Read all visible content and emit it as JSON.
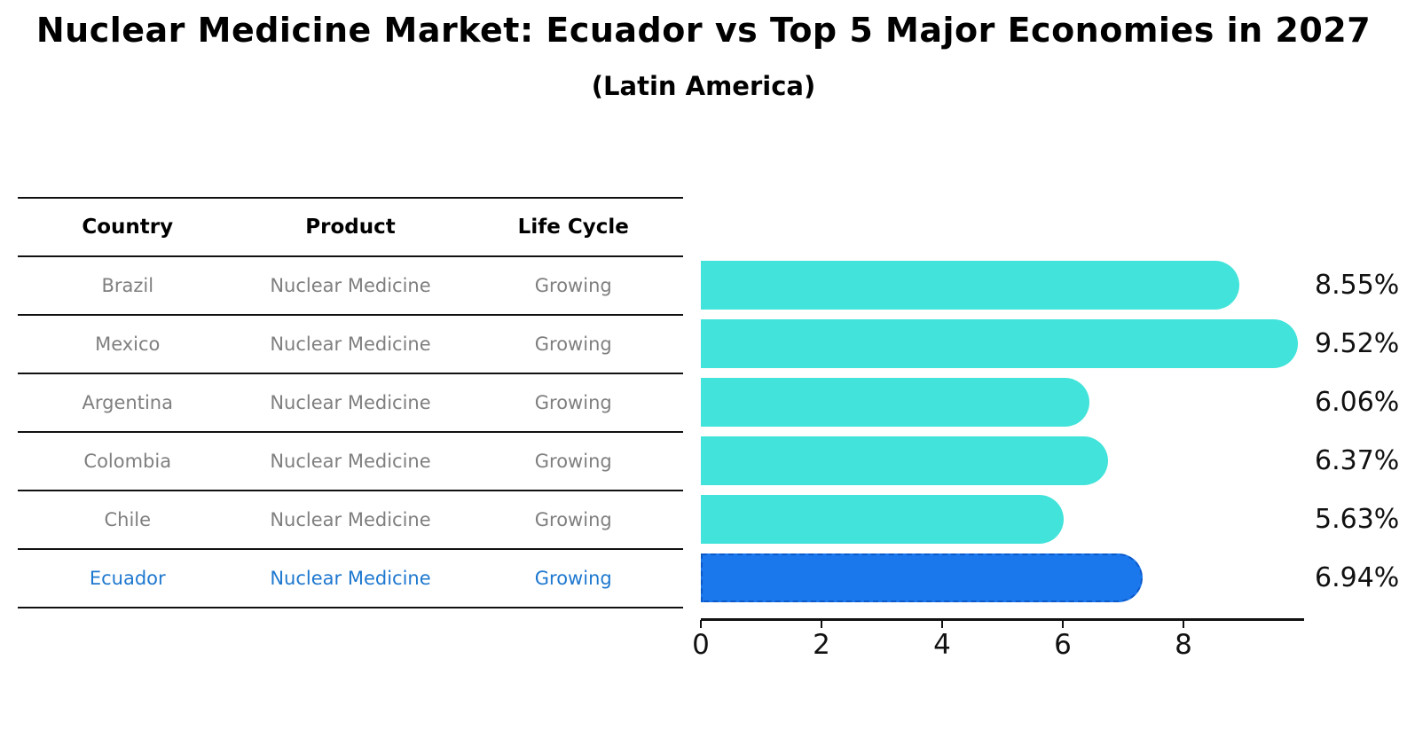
{
  "header": {
    "title": "Nuclear Medicine Market: Ecuador vs Top 5 Major Economies in 2027",
    "subtitle": "(Latin America)"
  },
  "table": {
    "columns": [
      "Country",
      "Product",
      "Life Cycle"
    ],
    "rows": [
      {
        "country": "Brazil",
        "product": "Nuclear Medicine",
        "life_cycle": "Growing",
        "highlight": false
      },
      {
        "country": "Mexico",
        "product": "Nuclear Medicine",
        "life_cycle": "Growing",
        "highlight": false
      },
      {
        "country": "Argentina",
        "product": "Nuclear Medicine",
        "life_cycle": "Growing",
        "highlight": false
      },
      {
        "country": "Colombia",
        "product": "Nuclear Medicine",
        "life_cycle": "Growing",
        "highlight": false
      },
      {
        "country": "Chile",
        "product": "Nuclear Medicine",
        "life_cycle": "Growing",
        "highlight": false
      },
      {
        "country": "Ecuador",
        "product": "Nuclear Medicine",
        "life_cycle": "Growing",
        "highlight": true
      }
    ]
  },
  "chart_data": {
    "type": "bar",
    "orientation": "horizontal",
    "title": "Nuclear Medicine Market: Ecuador vs Top 5 Major Economies in 2027",
    "subtitle": "(Latin America)",
    "categories": [
      "Brazil",
      "Mexico",
      "Argentina",
      "Colombia",
      "Chile",
      "Ecuador"
    ],
    "values": [
      8.55,
      9.52,
      6.06,
      6.37,
      5.63,
      6.94
    ],
    "value_labels": [
      "8.55%",
      "9.52%",
      "6.06%",
      "6.37%",
      "5.63%",
      "6.94%"
    ],
    "unit": "%",
    "xlim": [
      0,
      10
    ],
    "x_ticks": [
      "0",
      "2",
      "4",
      "6",
      "8"
    ],
    "x_tick_values": [
      0,
      2,
      4,
      6,
      8
    ],
    "grid": false,
    "legend_position": "none",
    "highlight_index": 5,
    "colors": {
      "bar": "#42e3da",
      "highlight_bar": "#1b78ec",
      "highlight_border": "#0c59c9",
      "highlight_text": "#1e78cf",
      "row_text": "#7f7f7f",
      "axis": "#111111"
    }
  }
}
